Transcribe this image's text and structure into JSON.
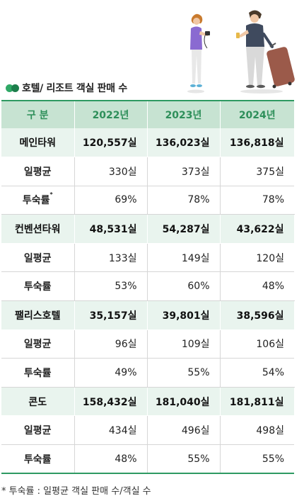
{
  "section": {
    "title": "호텔/ 리조트 객실 판매 수",
    "dot_colors": [
      "#2fa866",
      "#1c7e4b"
    ]
  },
  "table": {
    "headers": [
      "구 분",
      "2022년",
      "2023년",
      "2024년"
    ],
    "groups": [
      {
        "name": "메인타워",
        "totals": [
          "120,557실",
          "136,023실",
          "136,818실"
        ],
        "daily_label": "일평균",
        "daily": [
          "330실",
          "373실",
          "375실"
        ],
        "occ_label": "투숙률",
        "occ_mark": "*",
        "occ": [
          "69%",
          "78%",
          "78%"
        ]
      },
      {
        "name": "컨벤션타워",
        "totals": [
          "48,531실",
          "54,287실",
          "43,622실"
        ],
        "daily_label": "일평균",
        "daily": [
          "133실",
          "149실",
          "120실"
        ],
        "occ_label": "투숙률",
        "occ_mark": "",
        "occ": [
          "53%",
          "60%",
          "48%"
        ]
      },
      {
        "name": "팰리스호텔",
        "totals": [
          "35,157실",
          "39,801실",
          "38,596실"
        ],
        "daily_label": "일평균",
        "daily": [
          "96실",
          "109실",
          "106실"
        ],
        "occ_label": "투숙률",
        "occ_mark": "",
        "occ": [
          "49%",
          "55%",
          "54%"
        ]
      },
      {
        "name": "콘도",
        "totals": [
          "158,432실",
          "181,040실",
          "181,811실"
        ],
        "daily_label": "일평균",
        "daily": [
          "434실",
          "496실",
          "498실"
        ],
        "occ_label": "투숙률",
        "occ_mark": "",
        "occ": [
          "48%",
          "55%",
          "55%"
        ]
      }
    ]
  },
  "footnote": "* 투숙률 : 일평균 객실 판매 수/객실 수",
  "illustration": {
    "icons": [
      "woman-with-camera-icon",
      "man-with-suitcase-icon"
    ]
  }
}
